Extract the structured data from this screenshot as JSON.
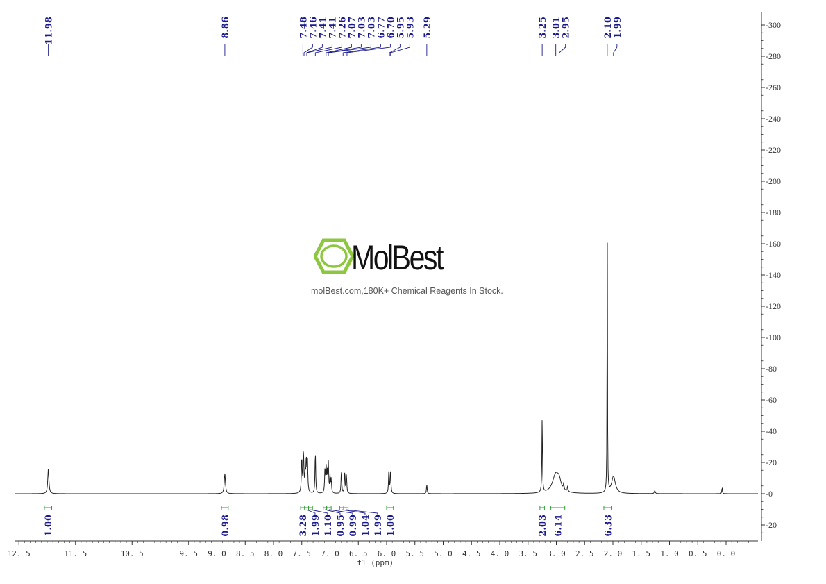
{
  "watermark": {
    "name": "MolBest",
    "tagline": "molBest.com,180K+ Chemical Reagents In Stock.",
    "logo_color": "#8dc63f"
  },
  "chart_data": {
    "type": "line",
    "xlabel": "f1 (ppm)",
    "ylabel": "",
    "x_reversed": true,
    "xlim": [
      13.0,
      -0.5
    ],
    "ylim": [
      -30,
      305
    ],
    "x_ticks": [
      "12.5",
      "11.5",
      "10.5",
      "9.5",
      "9.0",
      "8.5",
      "8.0",
      "7.5",
      "7.0",
      "6.5",
      "6.0",
      "5.5",
      "5.0",
      "4.5",
      "4.0",
      "3.5",
      "3.0",
      "2.5",
      "2.0",
      "1.5",
      "1.0",
      "0.5",
      "0.0"
    ],
    "y_ticks": [
      300,
      280,
      260,
      240,
      220,
      200,
      180,
      160,
      140,
      120,
      100,
      80,
      60,
      40,
      20,
      0,
      -20
    ],
    "line_color": "#222222",
    "label_color": "#1a1a8c",
    "integral_color": "#2ca02c",
    "peak_labels": [
      "11.98",
      "8.86",
      "7.48",
      "7.46",
      "7.41",
      "7.41",
      "7.26",
      "7.07",
      "7.03",
      "7.03",
      "6.77",
      "6.70",
      "5.95",
      "5.93",
      "5.29",
      "3.25",
      "3.01",
      "2.95",
      "2.10",
      "1.99"
    ],
    "peaks": [
      {
        "ppm": 11.98,
        "height": 16,
        "width": 0.012
      },
      {
        "ppm": 8.86,
        "height": 13,
        "width": 0.012
      },
      {
        "ppm": 7.5,
        "height": 22,
        "width": 0.008
      },
      {
        "ppm": 7.47,
        "height": 26,
        "width": 0.008
      },
      {
        "ppm": 7.44,
        "height": 12,
        "width": 0.008
      },
      {
        "ppm": 7.42,
        "height": 20,
        "width": 0.008
      },
      {
        "ppm": 7.4,
        "height": 20,
        "width": 0.008
      },
      {
        "ppm": 7.26,
        "height": 27,
        "width": 0.007
      },
      {
        "ppm": 7.09,
        "height": 15,
        "width": 0.007
      },
      {
        "ppm": 7.07,
        "height": 17,
        "width": 0.007
      },
      {
        "ppm": 7.05,
        "height": 12,
        "width": 0.007
      },
      {
        "ppm": 7.03,
        "height": 19,
        "width": 0.007
      },
      {
        "ppm": 7.0,
        "height": 10,
        "width": 0.007
      },
      {
        "ppm": 6.98,
        "height": 9,
        "width": 0.007
      },
      {
        "ppm": 6.8,
        "height": 15,
        "width": 0.007
      },
      {
        "ppm": 6.74,
        "height": 14,
        "width": 0.007
      },
      {
        "ppm": 6.71,
        "height": 12,
        "width": 0.007
      },
      {
        "ppm": 5.96,
        "height": 16,
        "width": 0.007
      },
      {
        "ppm": 5.93,
        "height": 15,
        "width": 0.007
      },
      {
        "ppm": 5.29,
        "height": 6,
        "width": 0.007
      },
      {
        "ppm": 3.25,
        "height": 49,
        "width": 0.006
      },
      {
        "ppm": 3.01,
        "height": 12,
        "width": 0.07
      },
      {
        "ppm": 2.95,
        "height": 5,
        "width": 0.04
      },
      {
        "ppm": 2.87,
        "height": 4,
        "width": 0.006
      },
      {
        "ppm": 2.8,
        "height": 4,
        "width": 0.006
      },
      {
        "ppm": 2.1,
        "height": 193,
        "width": 0.004
      },
      {
        "ppm": 1.99,
        "height": 11,
        "width": 0.04
      },
      {
        "ppm": 1.26,
        "height": 2,
        "width": 0.01
      },
      {
        "ppm": 0.07,
        "height": 4,
        "width": 0.006
      }
    ],
    "integrals": [
      {
        "from": 12.05,
        "to": 11.92,
        "value": "1.00"
      },
      {
        "from": 8.92,
        "to": 8.8,
        "value": "0.98"
      },
      {
        "from": 7.52,
        "to": 7.45,
        "value": "3.28"
      },
      {
        "from": 7.45,
        "to": 7.38,
        "value": "1.99"
      },
      {
        "from": 7.38,
        "to": 7.31,
        "value": "1.10"
      },
      {
        "from": 7.12,
        "to": 7.06,
        "value": "0.95"
      },
      {
        "from": 7.06,
        "to": 6.98,
        "value": "0.99"
      },
      {
        "from": 6.83,
        "to": 6.76,
        "value": "1.04"
      },
      {
        "from": 6.76,
        "to": 6.68,
        "value": "1.99"
      },
      {
        "from": 6.0,
        "to": 5.88,
        "value": "1.00"
      },
      {
        "from": 3.29,
        "to": 3.21,
        "value": "2.03"
      },
      {
        "from": 3.1,
        "to": 2.85,
        "value": "6.14"
      },
      {
        "from": 2.16,
        "to": 2.03,
        "value": "6.33"
      }
    ]
  }
}
